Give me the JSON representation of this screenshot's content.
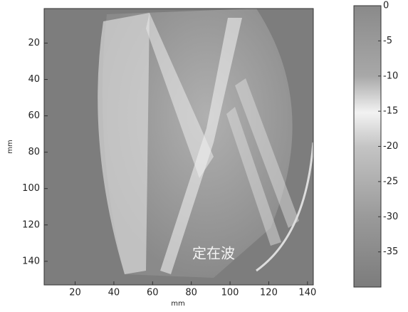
{
  "chart_data": {
    "type": "heatmap",
    "xlabel": "mm",
    "ylabel": "mm",
    "annotation": "定在波",
    "xlim": [
      4,
      143
    ],
    "xticks": [
      20,
      40,
      60,
      80,
      100,
      120,
      140
    ],
    "ylim": [
      1,
      153
    ],
    "yticks": [
      20,
      40,
      60,
      80,
      100,
      120,
      140
    ],
    "y_inverted": true,
    "clim": [
      -40,
      0
    ],
    "cticks": [
      0,
      -5,
      -10,
      -15,
      -20,
      -25,
      -30,
      -35
    ]
  }
}
